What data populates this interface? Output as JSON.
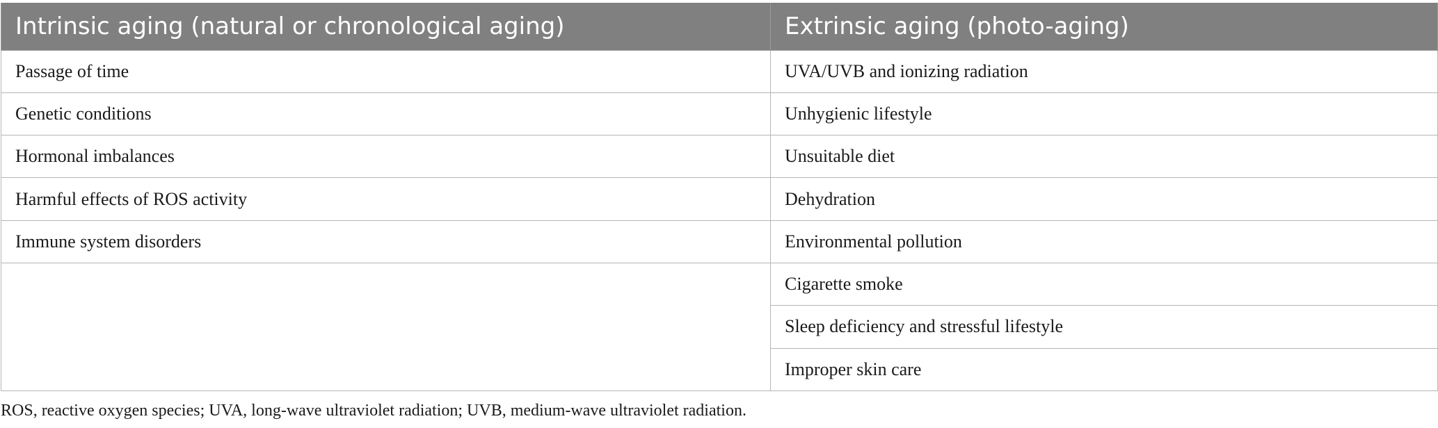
{
  "table": {
    "headers": [
      "Intrinsic aging (natural or chronological aging)",
      "Extrinsic aging (photo-aging)"
    ],
    "intrinsic": [
      "Passage of time",
      "Genetic conditions",
      "Hormonal imbalances",
      "Harmful effects of ROS activity",
      "Immune system disorders"
    ],
    "extrinsic": [
      "UVA/UVB and ionizing radiation",
      "Unhygienic lifestyle",
      "Unsuitable diet",
      "Dehydration",
      "Environmental pollution",
      "Cigarette smoke",
      "Sleep deficiency and stressful lifestyle",
      "Improper skin care"
    ]
  },
  "footnote": "ROS, reactive oxygen species; UVA, long-wave ultraviolet radiation; UVB, medium-wave ultraviolet radiation."
}
